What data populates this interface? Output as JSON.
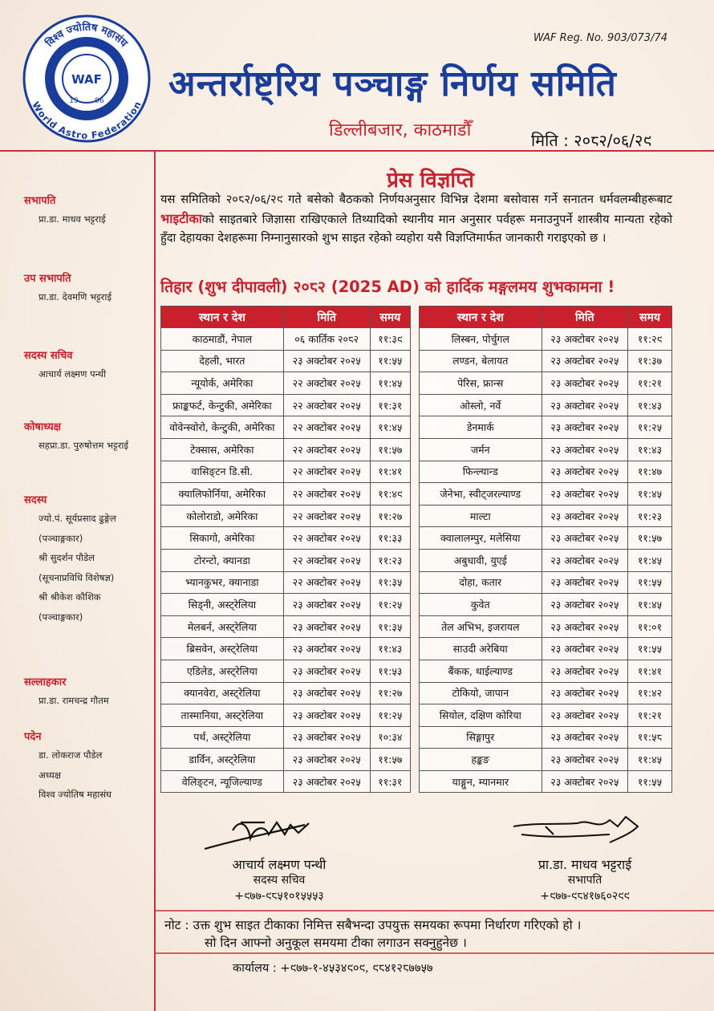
{
  "header": {
    "reg_no": "WAF Reg. No. 903/073/74",
    "title": "अन्तर्राष्ट्रिय पञ्चाङ्ग निर्णय समिति",
    "address": "डिल्लीबजार, काठमाडौँ",
    "date": "मिति : २०८२/०६/२९"
  },
  "logo": {
    "top_text": "विश्व ज्योतिष महासंघ",
    "bottom_text": "World Astro Federation",
    "center": "WAF",
    "year_left": "19",
    "year_right": "96"
  },
  "sidebar": [
    {
      "role": "सभापति",
      "lines": [
        "प्रा.डा. माधव भट्टराई"
      ]
    },
    {
      "role": "उप सभापति",
      "lines": [
        "प्रा.डा. देवमणि भट्टराई"
      ]
    },
    {
      "role": "सदस्य सचिव",
      "lines": [
        "आचार्य लक्ष्मण पन्थी"
      ]
    },
    {
      "role": "कोषाध्यक्ष",
      "lines": [
        "सहप्रा.डा. पुरुषोत्तम भट्टराई"
      ]
    },
    {
      "role": "सदस्य",
      "lines": [
        "ज्यो.पं. सूर्यप्रसाद ढुङ्गेल",
        "(पञ्चाङ्गकार)",
        "श्री सुदर्शन पौडेल",
        "(सूचनाप्रविधि विशेषज्ञ)",
        "श्री श्रीकेश कौशिक",
        "(पञ्चाङ्गकार)"
      ]
    },
    {
      "role": "सल्लाहकार",
      "lines": [
        "प्रा.डा. रामचन्द्र गौतम"
      ]
    },
    {
      "role": "पदेन",
      "lines": [
        "डा. लोकराज पौडेल",
        "अध्यक्ष",
        "विश्व ज्योतिष महासंघ"
      ]
    }
  ],
  "body": {
    "heading": "प्रेस विज्ञप्ति",
    "paragraph": {
      "before": "यस समितिको २०८२/०६/२९ गते बसेको बैठकको निर्णयअनुसार विभिन्न देशमा बसोवास गर्ने सनातन धर्मवलम्बीहरूबाट ",
      "highlight": "भाइटीका",
      "after": "को साइतबारे जिज्ञासा राखिएकाले तिथ्यादिको स्थानीय मान अनुसार पर्वहरू मनाउनुपर्ने शास्त्रीय मान्यता रहेको हुँदा देहायका देशहरूमा निम्नानुसारको शुभ साइत रहेको व्यहोरा यसै विज्ञप्तिमार्फत जानकारी गराइएको छ ।"
    },
    "greeting": "तिहार (शुभ दीपावली) २०८२ (2025 AD) को हार्दिक मङ्गलमय शुभकामना !"
  },
  "tables": [
    {
      "columns": [
        "स्थान र देश",
        "मिति",
        "समय"
      ],
      "rows": [
        [
          "काठमाडौं, नेपाल",
          "०६ कार्तिक २०८२",
          "११:३९"
        ],
        [
          "देहली, भारत",
          "२३ अक्टोबर २०२५",
          "११:५५"
        ],
        [
          "न्यूयोर्क, अमेरिका",
          "२२ अक्टोबर २०२५",
          "११:४५"
        ],
        [
          "फ्राङ्कफर्ट, केन्टुकी, अमेरिका",
          "२२ अक्टोबर २०२५",
          "११:३१"
        ],
        [
          "वोवेन्स्वोरो, केन्टुकी, अमेरिका",
          "२२ अक्टोबर २०२५",
          "११:४५"
        ],
        [
          "टेक्सास, अमेरिका",
          "२२ अक्टोबर २०२५",
          "११:५७"
        ],
        [
          "वासिङ्टन डि.सी.",
          "२२ अक्टोबर २०२५",
          "११:४१"
        ],
        [
          "क्यालिफोर्निया, अमेरिका",
          "२२ अक्टोबर २०२५",
          "११:४९"
        ],
        [
          "कोलोराडो, अमेरिका",
          "२२ अक्टोबर २०२५",
          "११:२७"
        ],
        [
          "सिकागो, अमेरिका",
          "२२ अक्टोबर २०२५",
          "११:३३"
        ],
        [
          "टोरन्टो, क्यानडा",
          "२२ अक्टोबर २०२५",
          "११:२३"
        ],
        [
          "भ्यानकुभर, क्यानाडा",
          "२२ अक्टोबर २०२५",
          "११:३५"
        ],
        [
          "सिड्नी, अस्ट्रेलिया",
          "२३ अक्टोबर २०२५",
          "११:२५"
        ],
        [
          "मेलबर्न, अस्ट्रेलिया",
          "२३ अक्टोबर २०२५",
          "११:३५"
        ],
        [
          "ब्रिसवेन, अस्ट्रेलिया",
          "२३ अक्टोबर २०२५",
          "११:४३"
        ],
        [
          "एडिलेड, अस्ट्रेलिया",
          "२३ अक्टोबर २०२५",
          "११:५३"
        ],
        [
          "क्यानवेरा, अस्ट्रेलिया",
          "२३ अक्टोबर २०२५",
          "११:२७"
        ],
        [
          "तास्मानिया, अस्ट्रेलिया",
          "२३ अक्टोबर २०२५",
          "११:२५"
        ],
        [
          "पर्थ, अस्ट्रेलिया",
          "२३ अक्टोबर २०२५",
          "१०:३४"
        ],
        [
          "डार्विन, अस्ट्रेलिया",
          "२३ अक्टोबर २०२५",
          "११:५७"
        ],
        [
          "वेलिङ्टन, न्यूजिल्याण्ड",
          "२३ अक्टोबर २०२५",
          "११:३१"
        ]
      ]
    },
    {
      "columns": [
        "स्थान र देश",
        "मिति",
        "समय"
      ],
      "rows": [
        [
          "लिस्बन, पोर्चुगल",
          "२३ अक्टोबर २०२५",
          "११:२९"
        ],
        [
          "लण्डन, बेलायत",
          "२३ अक्टोबर २०२५",
          "११:३७"
        ],
        [
          "पेरिस, फ्रान्स",
          "२३ अक्टोबर २०२५",
          "११:२१"
        ],
        [
          "ओस्लो, नर्वे",
          "२३ अक्टोबर २०२५",
          "११:४३"
        ],
        [
          "डेनमार्क",
          "२३ अक्टोबर २०२५",
          "११:२५"
        ],
        [
          "जर्मन",
          "२३ अक्टोबर २०२५",
          "११:४३"
        ],
        [
          "फिन्ल्यान्ड",
          "२३ अक्टोबर २०२५",
          "११:४७"
        ],
        [
          "जेनेभा, स्वीट्जरल्याण्ड",
          "२३ अक्टोबर २०२५",
          "११:४५"
        ],
        [
          "माल्टा",
          "२३ अक्टोबर २०२५",
          "११:२३"
        ],
        [
          "क्वालालम्पुर, मलेसिया",
          "२३ अक्टोबर २०२५",
          "११:५७"
        ],
        [
          "अबुधावी, युएई",
          "२३ अक्टोबर २०२५",
          "११:४५"
        ],
        [
          "दोहा, कतार",
          "२३ अक्टोबर २०२५",
          "११:५५"
        ],
        [
          "कुवेत",
          "२३ अक्टोबर २०२५",
          "११:४५"
        ],
        [
          "तेल अभिभ, इजरायल",
          "२३ अक्टोबर २०२५",
          "११:०१"
        ],
        [
          "साउदी अरेबिया",
          "२३ अक्टोबर २०२५",
          "११:५५"
        ],
        [
          "बैंकक, थाईल्याण्ड",
          "२३ अक्टोबर २०२५",
          "११:४१"
        ],
        [
          "टोकियो, जापान",
          "२३ अक्टोबर २०२५",
          "११:४२"
        ],
        [
          "सियोल, दक्षिण कोरिया",
          "२३ अक्टोबर २०२५",
          "११:२१"
        ],
        [
          "सिङ्गापुर",
          "२३ अक्टोबर २०२५",
          "११:५८"
        ],
        [
          "हङ्कङ",
          "२३ अक्टोबर २०२५",
          "११:४५"
        ],
        [
          "याङ्गुन, म्यानमार",
          "२३ अक्टोबर २०२५",
          "११:५५"
        ]
      ]
    }
  ],
  "signatures": [
    {
      "name": "आचार्य लक्ष्मण पन्थी",
      "title": "सदस्य सचिव",
      "phone": "+९७७-९८५१०१५५५३"
    },
    {
      "name": "प्रा.डा. माधव भट्टराई",
      "title": "सभापति",
      "phone": "+९७७-९८४१७६०२९९"
    }
  ],
  "note": [
    "नोट : उक्त शुभ साइत टीकाका निमित्त सबैभन्दा उपयुक्त समयका रूपमा निर्धारण गरिएको हो ।",
    "सो दिन आफ्नो अनुकूल समयमा टीका लगाउन सक्नुहुनेछ ।"
  ],
  "footer": "कार्यालय : +९७७-१-४५३४९०९, ९८४१२८७७५७"
}
